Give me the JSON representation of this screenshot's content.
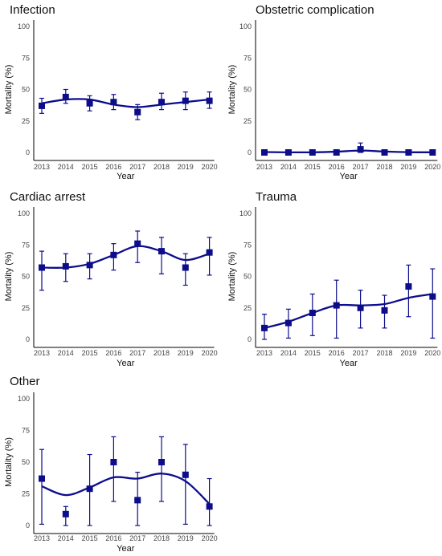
{
  "colors": {
    "series": "#0d0d8c",
    "axis": "#000000",
    "text": "#111111",
    "background": "#ffffff"
  },
  "chart_data": [
    {
      "type": "scatter",
      "title": "Infection",
      "xlabel": "Year",
      "ylabel": "Mortality (%)",
      "ylim": [
        0,
        100
      ],
      "yticks": [
        0,
        25,
        50,
        75,
        100
      ],
      "categories": [
        "2013",
        "2014",
        "2015",
        "2016",
        "2017",
        "2018",
        "2019",
        "2020"
      ],
      "values": [
        37,
        44,
        39,
        40,
        32,
        40,
        41,
        41
      ],
      "error_low": [
        31,
        39,
        33,
        34,
        26,
        34,
        34,
        35
      ],
      "error_high": [
        43,
        50,
        45,
        46,
        38,
        47,
        48,
        48
      ],
      "trend": [
        39,
        42,
        42,
        38,
        36,
        38,
        40,
        42
      ],
      "grid": false
    },
    {
      "type": "scatter",
      "title": "Obstetric complication",
      "xlabel": "Year",
      "ylabel": "Mortality (%)",
      "ylim": [
        0,
        100
      ],
      "yticks": [
        0,
        25,
        50,
        75,
        100
      ],
      "categories": [
        "2013",
        "2014",
        "2015",
        "2016",
        "2017",
        "2018",
        "2019",
        "2020"
      ],
      "values": [
        0,
        0,
        0,
        0,
        2.5,
        0,
        0,
        0
      ],
      "error_low": [
        0,
        0,
        0,
        0,
        0,
        0,
        0,
        0
      ],
      "error_high": [
        0,
        0,
        0,
        0,
        7.5,
        0,
        0,
        0
      ],
      "trend": [
        0.3,
        0.1,
        0.1,
        0.6,
        1.5,
        0.7,
        0.2,
        0.1
      ],
      "grid": false
    },
    {
      "type": "scatter",
      "title": "Cardiac arrest",
      "xlabel": "Year",
      "ylabel": "Mortality (%)",
      "ylim": [
        0,
        100
      ],
      "yticks": [
        0,
        25,
        50,
        75,
        100
      ],
      "categories": [
        "2013",
        "2014",
        "2015",
        "2016",
        "2017",
        "2018",
        "2019",
        "2020"
      ],
      "values": [
        57,
        58,
        59,
        67,
        76,
        70,
        57,
        69
      ],
      "error_low": [
        39,
        46,
        48,
        55,
        61,
        52,
        43,
        51
      ],
      "error_high": [
        70,
        68,
        68,
        76,
        86,
        81,
        68,
        81
      ],
      "trend": [
        57,
        57,
        60,
        67,
        74,
        70,
        63,
        68
      ],
      "grid": false
    },
    {
      "type": "scatter",
      "title": "Trauma",
      "xlabel": "Year",
      "ylabel": "Mortality (%)",
      "ylim": [
        0,
        100
      ],
      "yticks": [
        0,
        25,
        50,
        75,
        100
      ],
      "categories": [
        "2013",
        "2014",
        "2015",
        "2016",
        "2017",
        "2018",
        "2019",
        "2020"
      ],
      "values": [
        9,
        13,
        21,
        27,
        25,
        23,
        42,
        34
      ],
      "error_low": [
        0,
        1,
        3,
        1,
        9,
        9,
        18,
        1
      ],
      "error_high": [
        20,
        24,
        36,
        47,
        39,
        35,
        59,
        56
      ],
      "trend": [
        9,
        14,
        21,
        27,
        27,
        28,
        33,
        36
      ],
      "grid": false
    },
    {
      "type": "scatter",
      "title": "Other",
      "xlabel": "Year",
      "ylabel": "Mortality (%)",
      "ylim": [
        0,
        100
      ],
      "yticks": [
        0,
        25,
        50,
        75,
        100
      ],
      "categories": [
        "2013",
        "2014",
        "2015",
        "2016",
        "2017",
        "2018",
        "2019",
        "2020"
      ],
      "values": [
        37,
        9,
        29,
        50,
        20,
        50,
        40,
        15
      ],
      "error_low": [
        1,
        0,
        0,
        19,
        0,
        19,
        1,
        0
      ],
      "error_high": [
        60,
        15,
        56,
        70,
        42,
        70,
        64,
        37
      ],
      "trend": [
        31,
        24,
        30,
        38,
        37,
        41,
        35,
        17
      ],
      "grid": false
    }
  ]
}
